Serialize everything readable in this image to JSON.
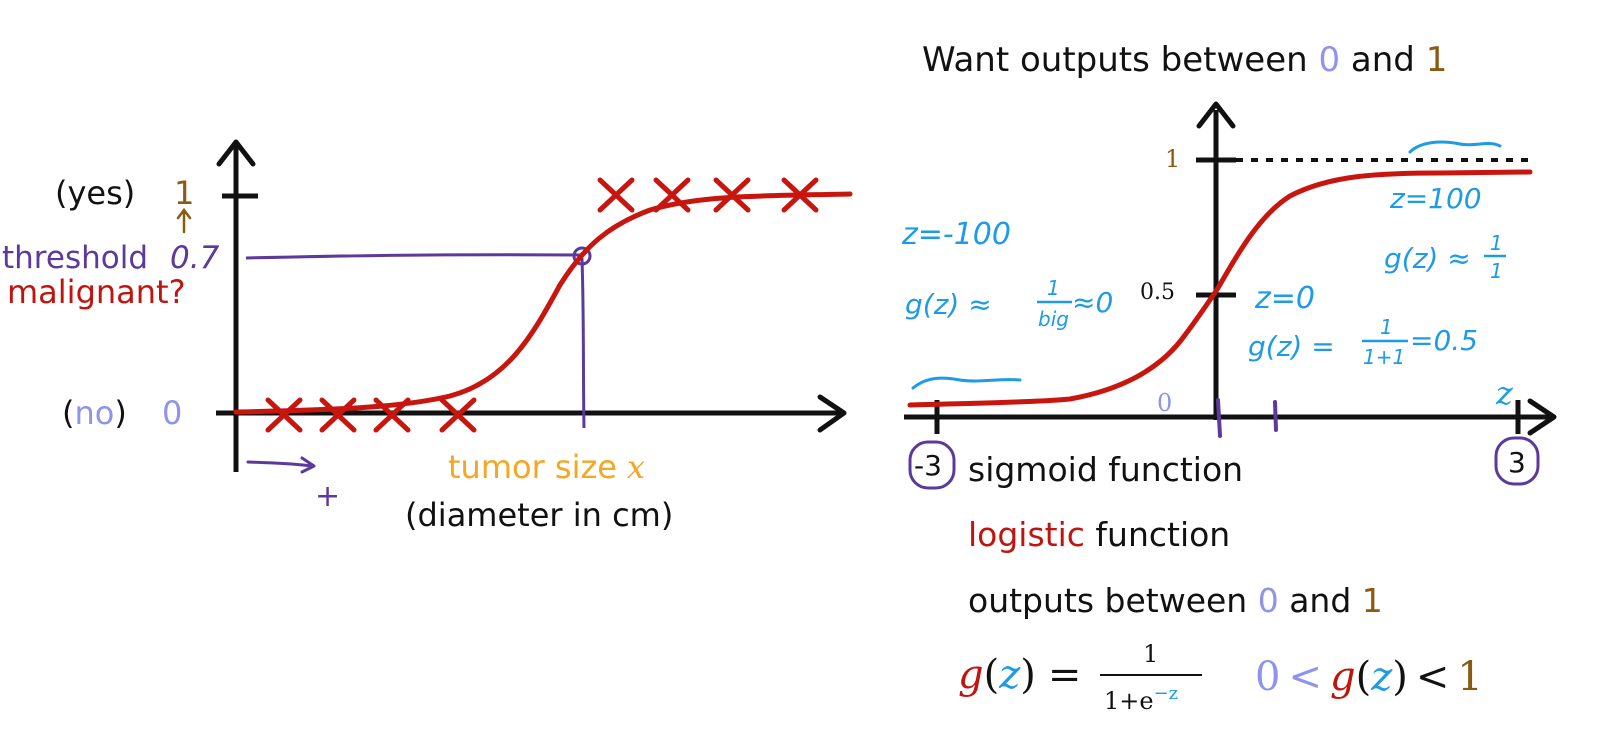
{
  "colors": {
    "axis": "#111111",
    "curve": "#c8160f",
    "cross": "#c8160f",
    "purple": "#5b3a9c",
    "orange_brown": "#8a5a10",
    "lavender": "#8f93ea",
    "tumor_orange": "#f5a623",
    "blue_hand": "#1e9be6",
    "red_text": "#c0150f"
  },
  "left_chart": {
    "yes_label": "(yes)",
    "yes_value": "1",
    "threshold_label": "threshold",
    "threshold_value": "0.7",
    "malignant_label": "malignant?",
    "no_label_open": "(",
    "no_label_word": "no",
    "no_label_close": ")",
    "no_value": "0",
    "x_label_main": "tumor size",
    "x_label_var": "x",
    "x_label_sub": "(diameter in cm)",
    "small_plus": "+"
  },
  "right_chart": {
    "title_prefix": "Want outputs between ",
    "title_zero": "0",
    "title_and": " and ",
    "title_one": "1",
    "y_tick_1": "1",
    "y_tick_05": "0.5",
    "origin_label": "0",
    "z_axis_label": "z",
    "x_min_label": "-3",
    "x_max_label": "3",
    "note_neg_z": "z=-100",
    "note_neg_g_prefix": "g(z) ≈",
    "note_neg_frac_num": "1",
    "note_neg_frac_den": "big",
    "note_neg_g_suffix": "≈0",
    "note_zero_z": "z=0",
    "note_zero_g_prefix": "g(z) =",
    "note_zero_frac_num": "1",
    "note_zero_frac_den": "1+1",
    "note_zero_g_suffix": "=0.5",
    "note_pos_z": "z=100",
    "note_pos_g_prefix": "g(z) ≈",
    "note_pos_frac_num": "1",
    "note_pos_frac_den": "1"
  },
  "notes": {
    "sigmoid": "sigmoid function",
    "logistic_red": "logistic",
    "logistic_rest": " function",
    "outputs_prefix": "outputs between ",
    "outputs_zero": "0",
    "outputs_and": " and ",
    "outputs_one": "1"
  },
  "formula": {
    "g": "g",
    "z": "z",
    "paren_open": "(",
    "paren_close": ")",
    "equals": "=",
    "numerator": "1",
    "denominator_base": "1+e",
    "denominator_exp": "−z",
    "range_zero": "0",
    "lt": "<",
    "range_one": "1"
  }
}
